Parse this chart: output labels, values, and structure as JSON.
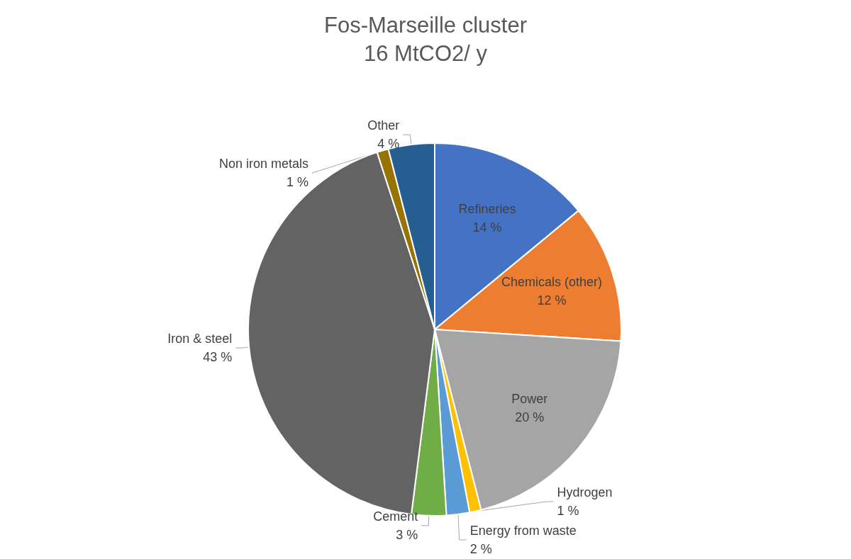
{
  "chart_data": {
    "type": "pie",
    "title": "Fos-Marseille cluster",
    "subtitle": "16 MtCO2/ y",
    "categories": [
      "Refineries",
      "Chemicals (other)",
      "Power",
      "Hydrogen",
      "Energy from waste",
      "Cement",
      "Iron & steel",
      "Non iron metals",
      "Other"
    ],
    "values": [
      14,
      12,
      20,
      1,
      2,
      3,
      43,
      1,
      4
    ],
    "value_labels": [
      "14 %",
      "12 %",
      "20 %",
      "1 %",
      "2 %",
      "3 %",
      "43 %",
      "1 %",
      "4 %"
    ],
    "colors": [
      "#4472c4",
      "#ed7d31",
      "#a5a5a5",
      "#ffc000",
      "#5b9bd5",
      "#70ad47",
      "#636363",
      "#997300",
      "#255e91"
    ],
    "legend": false
  }
}
